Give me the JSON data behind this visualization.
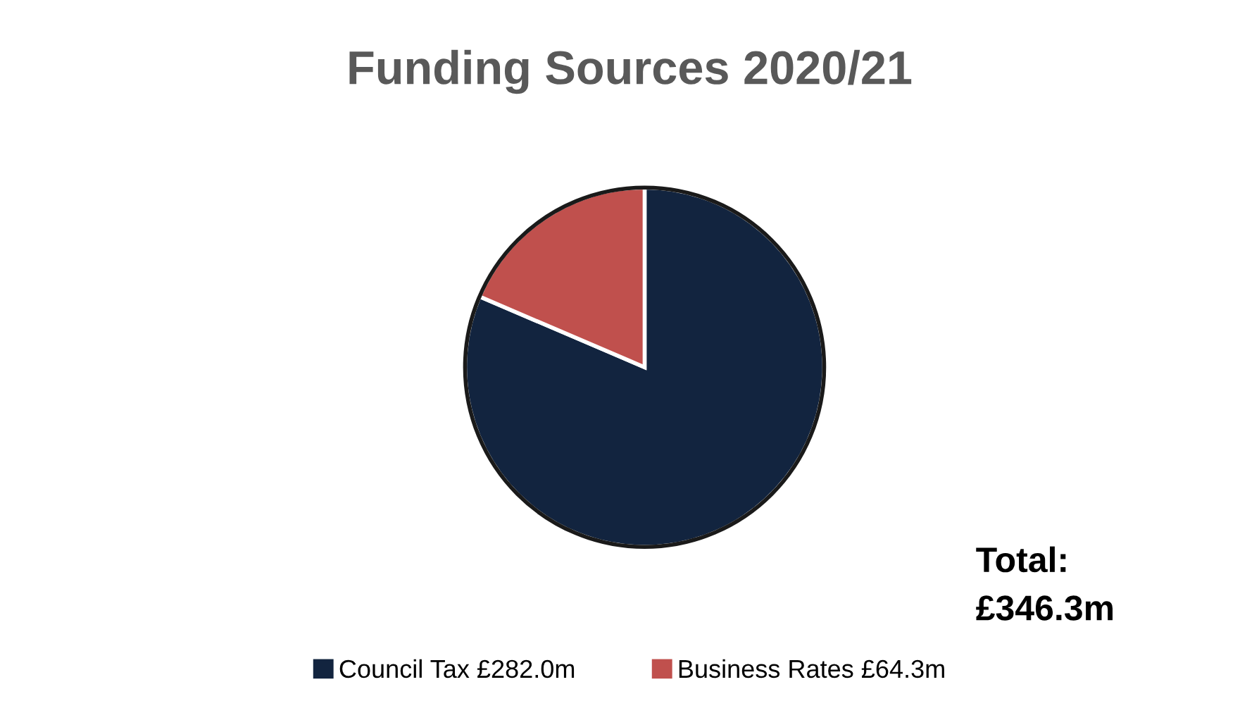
{
  "chart_data": {
    "type": "pie",
    "title": "Funding Sources 2020/21",
    "categories": [
      "Council Tax",
      "Business Rates"
    ],
    "values": [
      282.0,
      64.3
    ],
    "value_labels": [
      "£282.0m",
      "£64.3m"
    ],
    "colors": [
      "#12243f",
      "#c0504d"
    ],
    "legend": "bottom",
    "annotations": [
      "Total:\n£346.3m"
    ]
  }
}
